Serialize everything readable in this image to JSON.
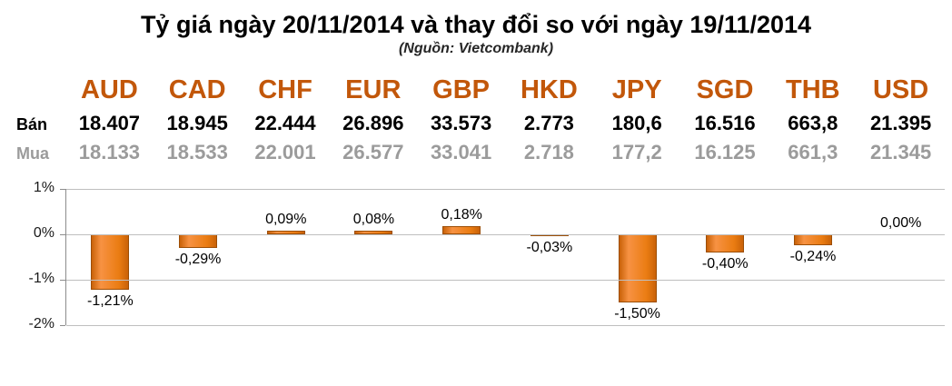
{
  "header": {
    "title": "Tỷ giá ngày 20/11/2014 và thay đổi so với ngày 19/11/2014",
    "subtitle": "(Nguồn: Vietcombank)"
  },
  "colors": {
    "currency_header_text": "#c2570a",
    "sell_text": "#000000",
    "buy_text": "#9b9b9b",
    "bar_fill": "#ec7d16",
    "bar_border": "#9c4e06",
    "grid_line": "#bfbfbf"
  },
  "table": {
    "row_labels": {
      "sell": "Bán",
      "buy": "Mua"
    },
    "currencies": [
      "AUD",
      "CAD",
      "CHF",
      "EUR",
      "GBP",
      "HKD",
      "JPY",
      "SGD",
      "THB",
      "USD"
    ],
    "sell": [
      "18.407",
      "18.945",
      "22.444",
      "26.896",
      "33.573",
      "2.773",
      "180,6",
      "16.516",
      "663,8",
      "21.395"
    ],
    "buy": [
      "18.133",
      "18.533",
      "22.001",
      "26.577",
      "33.041",
      "2.718",
      "177,2",
      "16.125",
      "661,3",
      "21.345"
    ]
  },
  "chart_data": {
    "type": "bar",
    "title": "Thay đổi so với ngày 19/11/2014",
    "categories": [
      "AUD",
      "CAD",
      "CHF",
      "EUR",
      "GBP",
      "HKD",
      "JPY",
      "SGD",
      "THB",
      "USD"
    ],
    "values": [
      -1.21,
      -0.29,
      0.09,
      0.08,
      0.18,
      -0.03,
      -1.5,
      -0.4,
      -0.24,
      0
    ],
    "labels": [
      "-1,21%",
      "-0,29%",
      "0,09%",
      "0,08%",
      "0,18%",
      "-0,03%",
      "-1,50%",
      "-0,40%",
      "-0,24%",
      "0,00%"
    ],
    "ylim": [
      -2,
      1
    ],
    "yticks": [
      {
        "label": "1%",
        "value": 1
      },
      {
        "label": "0%",
        "value": 0
      },
      {
        "label": "-1%",
        "value": -1
      },
      {
        "label": "-2%",
        "value": -2
      }
    ],
    "grid": true,
    "legend": "none"
  }
}
